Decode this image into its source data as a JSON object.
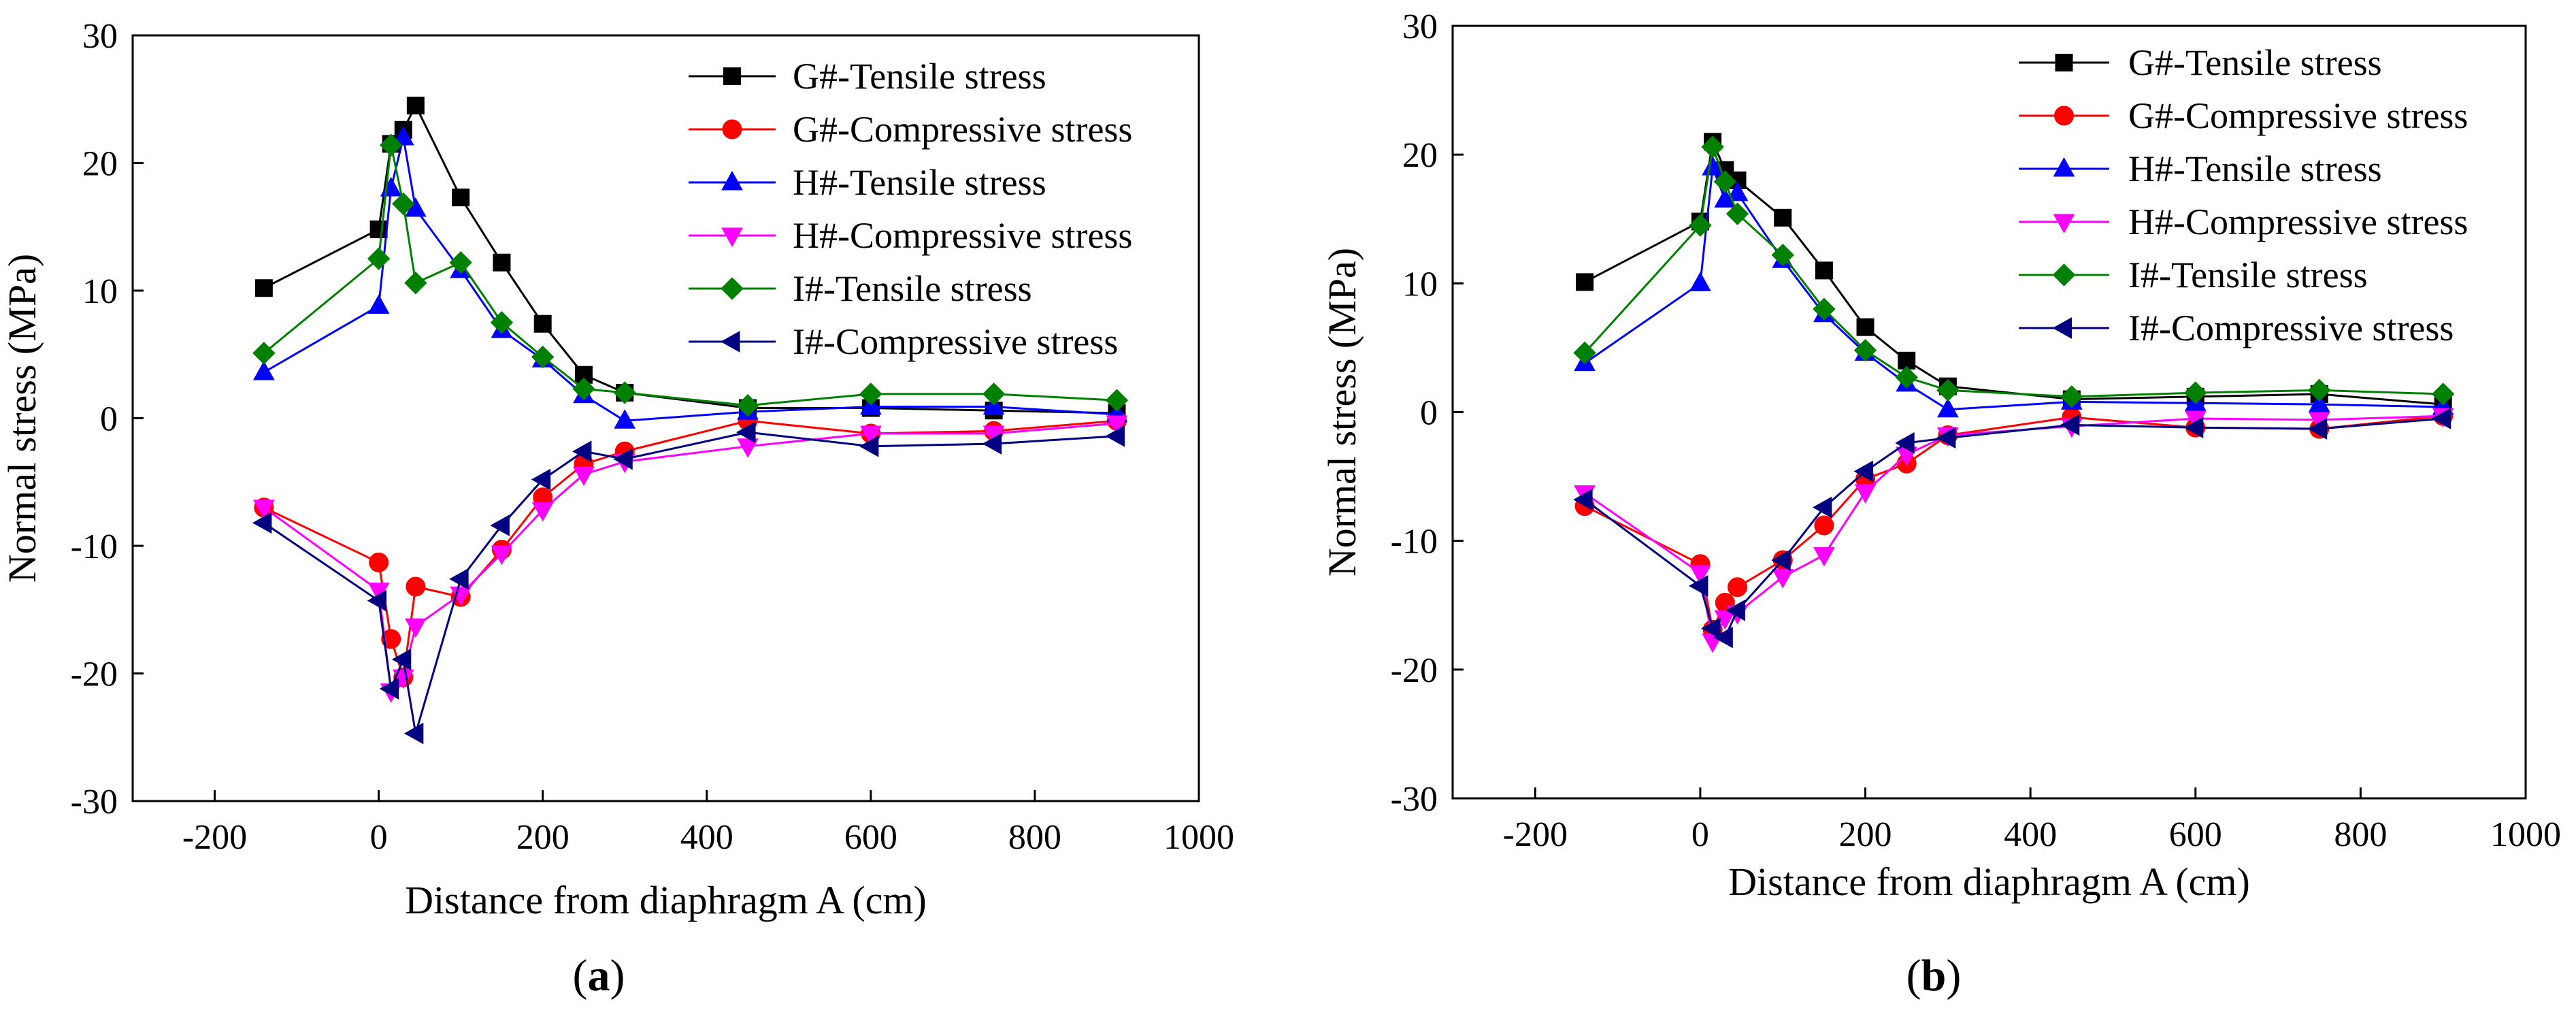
{
  "figure": {
    "panel_labels": [
      {
        "open": "(",
        "letter": "a",
        "close": ")"
      },
      {
        "open": "(",
        "letter": "b",
        "close": ")"
      }
    ]
  },
  "series_styles": [
    {
      "name": "G#-Tensile stress",
      "color": "#000000",
      "marker": "square"
    },
    {
      "name": "G#-Compressive stress",
      "color": "#ff0000",
      "marker": "circle"
    },
    {
      "name": "H#-Tensile stress",
      "color": "#0000ff",
      "marker": "triangle-up"
    },
    {
      "name": "H#-Compressive stress",
      "color": "#ff00ff",
      "marker": "triangle-down"
    },
    {
      "name": "I#-Tensile stress",
      "color": "#008000",
      "marker": "diamond"
    },
    {
      "name": "I#-Compressive stress",
      "color": "#000080",
      "marker": "triangle-left"
    }
  ],
  "chart_data": [
    {
      "type": "line",
      "panel": "a",
      "xlabel": "Distance from diaphragm A (cm)",
      "ylabel": "Normal stress (MPa)",
      "xlim": [
        -300,
        1000
      ],
      "ylim": [
        -30,
        30
      ],
      "xticks": [
        -200,
        0,
        200,
        400,
        600,
        800,
        1000
      ],
      "yticks": [
        30,
        20,
        10,
        0,
        -10,
        -20,
        -30
      ],
      "legend": "top-right",
      "series": [
        {
          "name": "G#-Tensile stress",
          "x": [
            -140,
            0,
            15,
            30,
            45,
            100,
            150,
            200,
            250,
            300,
            450,
            600,
            750,
            900
          ],
          "y": [
            10.2,
            14.8,
            21.5,
            22.6,
            24.5,
            17.3,
            12.2,
            7.4,
            3.4,
            2.0,
            0.8,
            0.8,
            0.6,
            0.4
          ]
        },
        {
          "name": "G#-Compressive stress",
          "x": [
            -140,
            0,
            15,
            30,
            45,
            100,
            150,
            200,
            250,
            300,
            450,
            600,
            750,
            900
          ],
          "y": [
            -7.0,
            -11.3,
            -17.3,
            -20.3,
            -13.2,
            -14.0,
            -10.3,
            -6.2,
            -3.6,
            -2.6,
            -0.2,
            -1.2,
            -1.0,
            -0.2
          ]
        },
        {
          "name": "H#-Tensile stress",
          "x": [
            -140,
            0,
            15,
            30,
            45,
            100,
            150,
            200,
            250,
            300,
            450,
            600,
            750,
            900
          ],
          "y": [
            3.6,
            8.8,
            18.0,
            22.0,
            16.4,
            11.6,
            6.9,
            4.6,
            1.8,
            -0.2,
            0.5,
            0.9,
            0.9,
            0.3
          ]
        },
        {
          "name": "H#-Compressive stress",
          "x": [
            -140,
            0,
            15,
            30,
            45,
            100,
            150,
            200,
            250,
            300,
            450,
            600,
            750,
            900
          ],
          "y": [
            -7.0,
            -13.5,
            -21.4,
            -20.3,
            -16.3,
            -13.8,
            -10.6,
            -7.2,
            -4.4,
            -3.4,
            -2.2,
            -1.2,
            -1.2,
            -0.4
          ]
        },
        {
          "name": "I#-Tensile stress",
          "x": [
            -140,
            0,
            15,
            30,
            45,
            100,
            150,
            200,
            250,
            300,
            450,
            600,
            750,
            900
          ],
          "y": [
            5.1,
            12.5,
            21.4,
            16.8,
            10.6,
            12.2,
            7.5,
            4.8,
            2.3,
            2.0,
            1.0,
            1.9,
            1.9,
            1.4
          ]
        },
        {
          "name": "I#-Compressive stress",
          "x": [
            -140,
            0,
            15,
            30,
            45,
            100,
            150,
            200,
            250,
            300,
            450,
            600,
            750,
            900
          ],
          "y": [
            -8.2,
            -14.3,
            -21.2,
            -18.9,
            -24.7,
            -12.6,
            -8.4,
            -4.8,
            -2.6,
            -3.2,
            -1.1,
            -2.2,
            -2.0,
            -1.4
          ]
        }
      ]
    },
    {
      "type": "line",
      "panel": "b",
      "xlabel": "Distance from diaphragm A (cm)",
      "ylabel": "Normal stress (MPa)",
      "xlim": [
        -300,
        1000
      ],
      "ylim": [
        -30,
        30
      ],
      "xticks": [
        -200,
        0,
        200,
        400,
        600,
        800,
        1000
      ],
      "yticks": [
        30,
        20,
        10,
        0,
        -10,
        -20,
        -30
      ],
      "legend": "top-right",
      "series": [
        {
          "name": "G#-Tensile stress",
          "x": [
            -140,
            0,
            15,
            30,
            45,
            100,
            150,
            200,
            250,
            300,
            450,
            600,
            750,
            900
          ],
          "y": [
            10.1,
            14.8,
            21.0,
            18.8,
            18.0,
            15.1,
            11.0,
            6.6,
            4.0,
            2.0,
            1.0,
            1.2,
            1.4,
            0.6
          ]
        },
        {
          "name": "G#-Compressive stress",
          "x": [
            -140,
            0,
            15,
            30,
            45,
            100,
            150,
            200,
            250,
            300,
            450,
            600,
            750,
            900
          ],
          "y": [
            -7.3,
            -11.8,
            -16.9,
            -14.8,
            -13.6,
            -11.5,
            -8.8,
            -5.2,
            -4.0,
            -1.8,
            -0.4,
            -1.2,
            -1.3,
            -0.3
          ]
        },
        {
          "name": "H#-Tensile stress",
          "x": [
            -140,
            0,
            15,
            30,
            45,
            100,
            150,
            200,
            250,
            300,
            450,
            600,
            750,
            900
          ],
          "y": [
            3.8,
            10.0,
            19.0,
            16.5,
            17.0,
            11.8,
            7.6,
            4.6,
            2.2,
            0.2,
            0.8,
            0.7,
            0.6,
            0.4
          ]
        },
        {
          "name": "H#-Compressive stress",
          "x": [
            -140,
            0,
            15,
            30,
            45,
            100,
            150,
            200,
            250,
            300,
            450,
            600,
            750,
            900
          ],
          "y": [
            -6.3,
            -12.5,
            -17.8,
            -16.0,
            -15.6,
            -12.8,
            -11.1,
            -6.2,
            -3.3,
            -1.8,
            -1.1,
            -0.5,
            -0.6,
            -0.3
          ]
        },
        {
          "name": "I#-Tensile stress",
          "x": [
            -140,
            0,
            15,
            30,
            45,
            100,
            150,
            200,
            250,
            300,
            450,
            600,
            750,
            900
          ],
          "y": [
            4.6,
            14.5,
            20.6,
            17.9,
            15.4,
            12.2,
            8.0,
            4.8,
            2.7,
            1.7,
            1.2,
            1.5,
            1.7,
            1.4
          ]
        },
        {
          "name": "I#-Compressive stress",
          "x": [
            -140,
            0,
            15,
            30,
            45,
            100,
            150,
            200,
            250,
            300,
            450,
            600,
            750,
            900
          ],
          "y": [
            -6.8,
            -13.5,
            -16.8,
            -17.5,
            -15.4,
            -11.5,
            -7.4,
            -4.6,
            -2.4,
            -2.0,
            -1.0,
            -1.2,
            -1.3,
            -0.5
          ]
        }
      ]
    }
  ]
}
